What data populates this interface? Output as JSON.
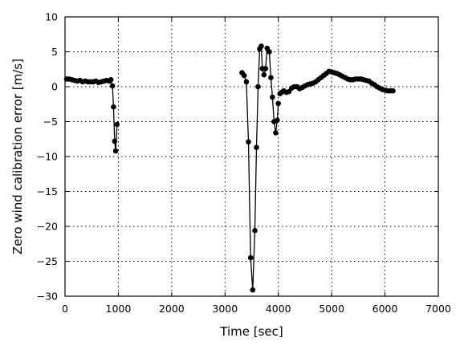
{
  "chart_data": {
    "type": "line",
    "title": "",
    "xlabel": "Time [sec]",
    "ylabel": "Zero wind calibration error [m/s]",
    "xlim": [
      0,
      7000
    ],
    "ylim": [
      -30,
      10
    ],
    "xticks": [
      0,
      1000,
      2000,
      3000,
      4000,
      5000,
      6000,
      7000
    ],
    "xtick_labels": [
      "0",
      "1000",
      "2000",
      "3000",
      "4000",
      "5000",
      "6000",
      "7000"
    ],
    "yticks": [
      10,
      5,
      0,
      -5,
      -10,
      -15,
      -20,
      -25,
      -30
    ],
    "ytick_labels": [
      "10",
      "5",
      "0",
      "−5",
      "−10",
      "−15",
      "−20",
      "−25",
      "−30"
    ],
    "grid": true,
    "marker": "circle",
    "color": "#000000",
    "series": [
      {
        "x": [
          30,
          80,
          130,
          180,
          230,
          280,
          330,
          380,
          430,
          480,
          530,
          580,
          630,
          680,
          730,
          780,
          830,
          860,
          890,
          910,
          930,
          950,
          975
        ],
        "y": [
          1.1,
          1.1,
          1.0,
          0.9,
          0.8,
          0.9,
          0.7,
          0.8,
          0.7,
          0.7,
          0.7,
          0.8,
          0.6,
          0.7,
          0.8,
          0.9,
          0.8,
          1.0,
          0.1,
          -2.9,
          -7.8,
          -9.2,
          -5.4
        ]
      },
      {
        "x": [
          3320,
          3360,
          3400,
          3440,
          3480,
          3520,
          3560,
          3590,
          3620,
          3650,
          3680,
          3700,
          3730,
          3760,
          3790,
          3830,
          3860,
          3890,
          3920,
          3950,
          3980,
          4000
        ],
        "y": [
          2.0,
          1.6,
          0.7,
          -7.9,
          -24.5,
          -29.1,
          -20.6,
          -8.7,
          0.0,
          5.4,
          5.8,
          2.6,
          1.7,
          2.6,
          5.5,
          5.0,
          1.3,
          -1.5,
          -5.0,
          -6.6,
          -4.8,
          -2.4
        ]
      },
      {
        "x": [
          4030,
          4060,
          4100,
          4150,
          4200,
          4250,
          4300,
          4350,
          4400,
          4450,
          4500,
          4550,
          4600,
          4650,
          4700,
          4750,
          4800,
          4850,
          4900,
          4950,
          5000,
          5050,
          5100,
          5150,
          5200,
          5250,
          5300,
          5350,
          5400,
          5450,
          5500,
          5550,
          5600,
          5650,
          5700,
          5750,
          5800,
          5850,
          5900,
          5950,
          6000,
          6050,
          6100,
          6150
        ],
        "y": [
          -1.0,
          -0.8,
          -0.6,
          -0.8,
          -0.7,
          -0.2,
          0.0,
          0.0,
          -0.3,
          -0.1,
          0.1,
          0.3,
          0.4,
          0.5,
          0.7,
          1.0,
          1.3,
          1.6,
          1.9,
          2.2,
          2.1,
          2.0,
          1.9,
          1.7,
          1.5,
          1.3,
          1.1,
          1.0,
          1.0,
          1.1,
          1.1,
          1.1,
          1.0,
          0.9,
          0.8,
          0.5,
          0.3,
          0.0,
          -0.2,
          -0.4,
          -0.5,
          -0.6,
          -0.6,
          -0.6
        ]
      }
    ]
  }
}
